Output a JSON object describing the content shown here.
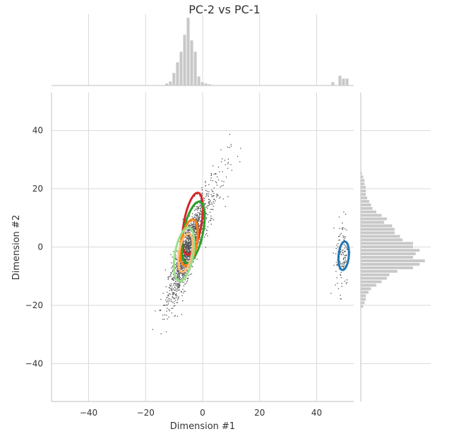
{
  "chart_data": {
    "type": "scatter",
    "title": "PC-2 vs PC-1",
    "xlabel": "Dimension #1",
    "ylabel": "Dimension #2",
    "xlim": [
      -53,
      53
    ],
    "ylim": [
      -53,
      53
    ],
    "xticks": [
      -40,
      -20,
      0,
      20,
      40
    ],
    "yticks": [
      -40,
      -20,
      0,
      20,
      40
    ],
    "grid": true,
    "colors": {
      "points": "#555555",
      "hist": "#c8c8c8",
      "grid": "#d9d9d9",
      "axis": "#cccccc"
    },
    "clusters": [
      {
        "n": 1400,
        "cx": -5.5,
        "cy": -1.5,
        "sx": 3.2,
        "sy": 8.5,
        "rho": 0.86
      },
      {
        "n": 200,
        "cx": 0.5,
        "cy": 11,
        "sx": 4.5,
        "sy": 10,
        "rho": 0.85
      },
      {
        "n": 130,
        "cx": 49,
        "cy": -2,
        "sx": 1.2,
        "sy": 6.5,
        "rho": 0.2
      }
    ],
    "contours": [
      {
        "color": "#d62728",
        "cx": -3.5,
        "cy": 8,
        "rx": 3.1,
        "ry": 11,
        "angle_deg": 10
      },
      {
        "color": "#2ca02c",
        "cx": -3.3,
        "cy": 5,
        "rx": 3.4,
        "ry": 11,
        "angle_deg": 12
      },
      {
        "color": "#ff7f0e",
        "cx": -4.8,
        "cy": 1.5,
        "rx": 2.8,
        "ry": 8.2,
        "angle_deg": 10
      },
      {
        "color": "#ffbb78",
        "cx": -6,
        "cy": -2,
        "rx": 2.3,
        "ry": 6.8,
        "angle_deg": 10
      },
      {
        "color": "#98df8a",
        "cx": -6.5,
        "cy": -2.5,
        "rx": 3.2,
        "ry": 9.5,
        "angle_deg": 10
      },
      {
        "color": "#1f77b4",
        "cx": 49.5,
        "cy": -3,
        "rx": 1.8,
        "ry": 5,
        "angle_deg": 5
      }
    ],
    "top_histogram": {
      "bin_width": 1.25,
      "bins": [
        {
          "x": -12.5,
          "count": 3
        },
        {
          "x": -11.25,
          "count": 6
        },
        {
          "x": -10,
          "count": 18
        },
        {
          "x": -8.75,
          "count": 33
        },
        {
          "x": -7.5,
          "count": 48
        },
        {
          "x": -6.25,
          "count": 72
        },
        {
          "x": -5,
          "count": 96
        },
        {
          "x": -3.75,
          "count": 64
        },
        {
          "x": -2.5,
          "count": 48
        },
        {
          "x": -1.25,
          "count": 13
        },
        {
          "x": 0,
          "count": 5
        },
        {
          "x": 1.25,
          "count": 3
        },
        {
          "x": 2.5,
          "count": 2
        },
        {
          "x": 3.75,
          "count": 1
        },
        {
          "x": 45.75,
          "count": 5
        },
        {
          "x": 48.25,
          "count": 14
        },
        {
          "x": 49.5,
          "count": 10
        },
        {
          "x": 50.75,
          "count": 10
        }
      ]
    },
    "right_histogram": {
      "bin_width": 1.2,
      "bins": [
        {
          "y": 25.2,
          "count": 2
        },
        {
          "y": 24,
          "count": 4
        },
        {
          "y": 22.8,
          "count": 6
        },
        {
          "y": 21.6,
          "count": 6
        },
        {
          "y": 20.4,
          "count": 8
        },
        {
          "y": 19.2,
          "count": 8
        },
        {
          "y": 18,
          "count": 8
        },
        {
          "y": 16.8,
          "count": 10
        },
        {
          "y": 15.6,
          "count": 13
        },
        {
          "y": 14.4,
          "count": 16
        },
        {
          "y": 13.2,
          "count": 18
        },
        {
          "y": 12,
          "count": 24
        },
        {
          "y": 10.8,
          "count": 32
        },
        {
          "y": 9.6,
          "count": 40
        },
        {
          "y": 8.4,
          "count": 36
        },
        {
          "y": 7.2,
          "count": 48
        },
        {
          "y": 6,
          "count": 52
        },
        {
          "y": 4.8,
          "count": 52
        },
        {
          "y": 3.6,
          "count": 60
        },
        {
          "y": 2.4,
          "count": 64
        },
        {
          "y": 1.2,
          "count": 80
        },
        {
          "y": 0,
          "count": 80
        },
        {
          "y": -1.2,
          "count": 90
        },
        {
          "y": -2.4,
          "count": 84
        },
        {
          "y": -3.6,
          "count": 80
        },
        {
          "y": -4.8,
          "count": 98
        },
        {
          "y": -6,
          "count": 90
        },
        {
          "y": -7.2,
          "count": 80
        },
        {
          "y": -8.4,
          "count": 56
        },
        {
          "y": -9.6,
          "count": 44
        },
        {
          "y": -10.8,
          "count": 40
        },
        {
          "y": -12,
          "count": 32
        },
        {
          "y": -13.2,
          "count": 24
        },
        {
          "y": -14.4,
          "count": 16
        },
        {
          "y": -15.6,
          "count": 12
        },
        {
          "y": -16.8,
          "count": 8
        },
        {
          "y": -18,
          "count": 8
        },
        {
          "y": -19.2,
          "count": 6
        },
        {
          "y": -20.4,
          "count": 4
        }
      ]
    }
  }
}
